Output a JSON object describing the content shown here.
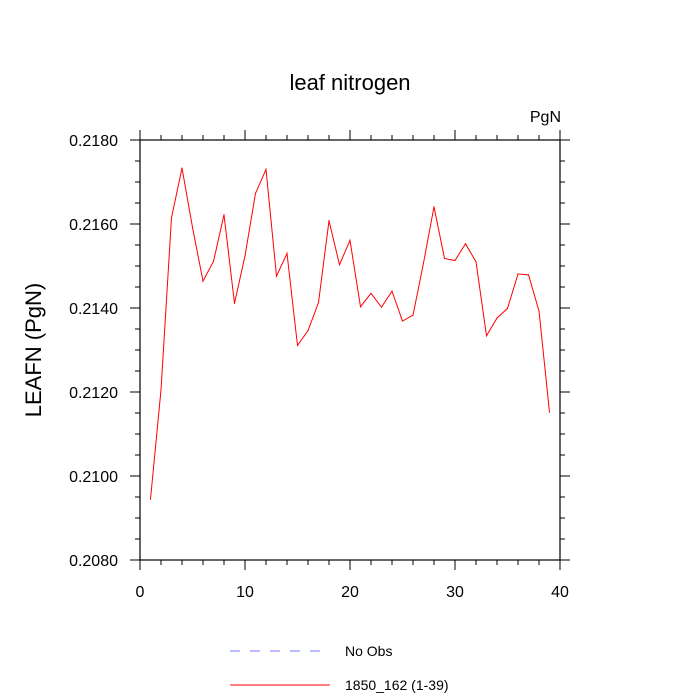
{
  "chart_data": {
    "type": "line",
    "title": "leaf nitrogen",
    "units_label": "PgN",
    "ylabel": "LEAFN  (PgN)",
    "xlabel": "",
    "xlim": [
      0,
      40
    ],
    "ylim": [
      0.208,
      0.218
    ],
    "x_ticks": [
      0,
      10,
      20,
      30,
      40
    ],
    "y_ticks": [
      "0.2080",
      "0.2100",
      "0.2120",
      "0.2140",
      "0.2160",
      "0.2180"
    ],
    "grid": false,
    "series": [
      {
        "name": "1850_162 (1-39)",
        "color": "#ff0000",
        "style": "solid",
        "x": [
          1,
          2,
          3,
          4,
          5,
          6,
          7,
          8,
          9,
          10,
          11,
          12,
          13,
          14,
          15,
          16,
          17,
          18,
          19,
          20,
          21,
          22,
          23,
          24,
          25,
          26,
          27,
          28,
          29,
          30,
          31,
          32,
          33,
          34,
          35,
          36,
          37,
          38,
          39
        ],
        "y": [
          0.20945,
          0.21205,
          0.21615,
          0.21733,
          0.21592,
          0.21464,
          0.21511,
          0.21622,
          0.21411,
          0.21524,
          0.21673,
          0.2173,
          0.21476,
          0.2153,
          0.21311,
          0.21346,
          0.21413,
          0.21608,
          0.21503,
          0.21561,
          0.21403,
          0.21435,
          0.21402,
          0.2144,
          0.21369,
          0.21383,
          0.21507,
          0.21641,
          0.21518,
          0.21513,
          0.21553,
          0.2151,
          0.21334,
          0.21376,
          0.21399,
          0.21481,
          0.21479,
          0.21393,
          0.21152
        ]
      }
    ],
    "legend": {
      "placement": "bottom",
      "entries": [
        {
          "label": "No Obs",
          "color": "#7777ff",
          "style": "dashed"
        },
        {
          "label": "1850_162 (1-39)",
          "color": "#ff0000",
          "style": "solid"
        }
      ]
    }
  }
}
